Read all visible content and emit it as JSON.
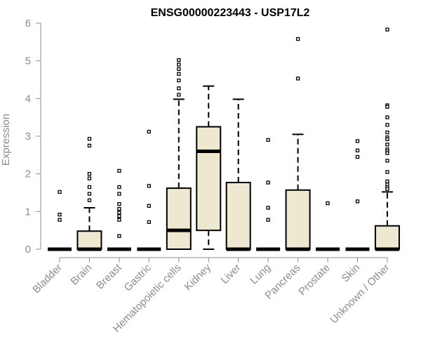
{
  "chart_data": {
    "type": "boxplot",
    "title": "ENSG00000223443 - USP17L2",
    "ylabel": "Expression",
    "xlabel": "",
    "ylim": [
      0,
      6
    ],
    "yticks": [
      "0",
      "1",
      "2",
      "3",
      "4",
      "5",
      "6"
    ],
    "grid": false,
    "colors": {
      "box_fill": "#efe8d0",
      "stroke": "#000000",
      "axis_text": "#8c8c8c"
    },
    "categories": [
      "Bladder",
      "Brain",
      "Breast",
      "Gastric",
      "Hematopoietic cells",
      "Kidney",
      "Liver",
      "Lung",
      "Pancreas",
      "Prostate",
      "Skin",
      "Unknown / Other"
    ],
    "boxes": [
      {
        "category": "Bladder",
        "min": 0,
        "q1": 0,
        "median": 0,
        "q3": 0,
        "max": 0,
        "outliers": [
          1.52,
          0.92,
          0.78
        ]
      },
      {
        "category": "Brain",
        "min": 0,
        "q1": 0,
        "median": 0,
        "q3": 0.48,
        "max": 1.1,
        "outliers": [
          2.93,
          2.75,
          2.0,
          1.88,
          1.65,
          1.47,
          1.3
        ]
      },
      {
        "category": "Breast",
        "min": 0,
        "q1": 0,
        "median": 0,
        "q3": 0,
        "max": 0,
        "outliers": [
          2.08,
          1.65,
          1.47,
          1.2,
          1.07,
          0.97,
          0.88,
          0.78,
          0.35
        ]
      },
      {
        "category": "Gastric",
        "min": 0,
        "q1": 0,
        "median": 0,
        "q3": 0,
        "max": 0,
        "outliers": [
          3.12,
          1.68,
          1.15,
          0.72
        ]
      },
      {
        "category": "Hematopoietic cells",
        "min": 0,
        "q1": 0,
        "median": 0.5,
        "q3": 1.62,
        "max": 3.98,
        "outliers": [
          5.02,
          4.9,
          4.78,
          4.65,
          4.48,
          4.27,
          4.1
        ]
      },
      {
        "category": "Kidney",
        "min": 0,
        "q1": 0.5,
        "median": 2.6,
        "q3": 3.25,
        "max": 4.33,
        "outliers": []
      },
      {
        "category": "Liver",
        "min": 0,
        "q1": 0,
        "median": 0,
        "q3": 1.77,
        "max": 3.98,
        "outliers": []
      },
      {
        "category": "Lung",
        "min": 0,
        "q1": 0,
        "median": 0,
        "q3": 0,
        "max": 0,
        "outliers": [
          2.9,
          1.77,
          1.1,
          0.78
        ]
      },
      {
        "category": "Pancreas",
        "min": 0,
        "q1": 0,
        "median": 0,
        "q3": 1.57,
        "max": 3.05,
        "outliers": [
          5.58,
          4.53
        ]
      },
      {
        "category": "Prostate",
        "min": 0,
        "q1": 0,
        "median": 0,
        "q3": 0,
        "max": 0,
        "outliers": [
          1.22
        ]
      },
      {
        "category": "Skin",
        "min": 0,
        "q1": 0,
        "median": 0,
        "q3": 0,
        "max": 0,
        "outliers": [
          2.87,
          2.62,
          2.45,
          1.27
        ]
      },
      {
        "category": "Unknown / Other",
        "min": 0,
        "q1": 0,
        "median": 0,
        "q3": 0.62,
        "max": 1.52,
        "outliers": [
          5.83,
          3.82,
          3.78,
          3.5,
          3.3,
          3.1,
          2.97,
          2.92,
          2.78,
          2.65,
          2.6,
          2.55,
          2.35,
          2.05,
          1.8,
          1.72,
          1.65,
          1.6
        ]
      }
    ]
  }
}
